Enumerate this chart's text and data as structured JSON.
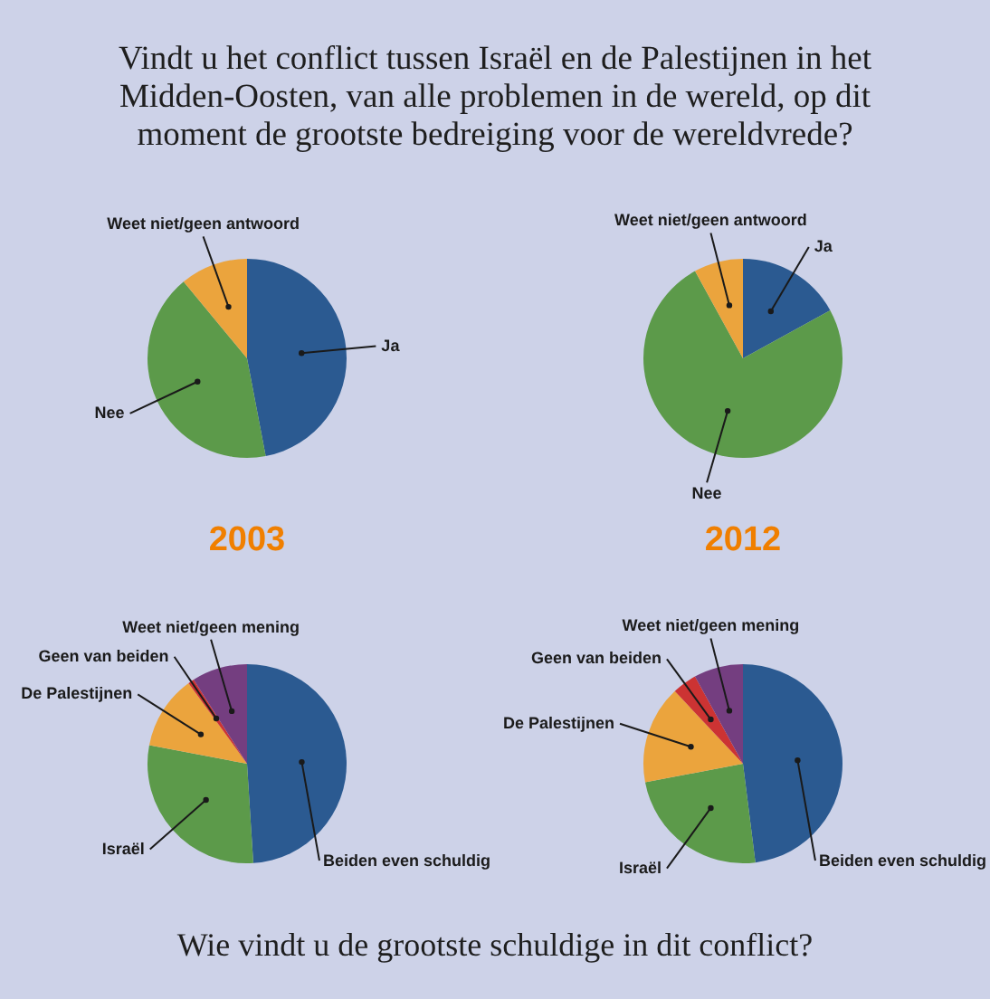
{
  "chart_data": [
    {
      "type": "pie",
      "title": "Vindt u het conflict tussen Israël en de Palestijnen in het Midden-Oosten, van alle problemen in de wereld, op dit moment de grootste bedreiging voor de wereldvrede?",
      "subtitle": "2003",
      "categories": [
        "Ja",
        "Nee",
        "Weet niet/geen antwoord"
      ],
      "values": [
        47,
        42,
        11
      ],
      "colors": [
        "#2b5a91",
        "#5c9a4a",
        "#eba43d"
      ]
    },
    {
      "type": "pie",
      "subtitle": "2012",
      "categories": [
        "Ja",
        "Nee",
        "Weet niet/geen antwoord"
      ],
      "values": [
        17,
        75,
        8
      ],
      "colors": [
        "#2b5a91",
        "#5c9a4a",
        "#eba43d"
      ]
    },
    {
      "type": "pie",
      "title": "Wie vindt u de grootste schuldige in dit conflict?",
      "categories": [
        "Beiden even schuldig",
        "Israël",
        "De Palestijnen",
        "Geen van beiden",
        "Weet niet/geen mening"
      ],
      "values": [
        49,
        29,
        12,
        1,
        9
      ],
      "colors": [
        "#2b5a91",
        "#5c9a4a",
        "#eba43d",
        "#cc3333",
        "#743e80"
      ]
    },
    {
      "type": "pie",
      "categories": [
        "Beiden even schuldig",
        "Israël",
        "De Palestijnen",
        "Geen van beiden",
        "Weet niet/geen mening"
      ],
      "values": [
        48,
        24,
        16,
        4,
        8
      ],
      "colors": [
        "#2b5a91",
        "#5c9a4a",
        "#eba43d",
        "#cc3333",
        "#743e80"
      ]
    }
  ]
}
